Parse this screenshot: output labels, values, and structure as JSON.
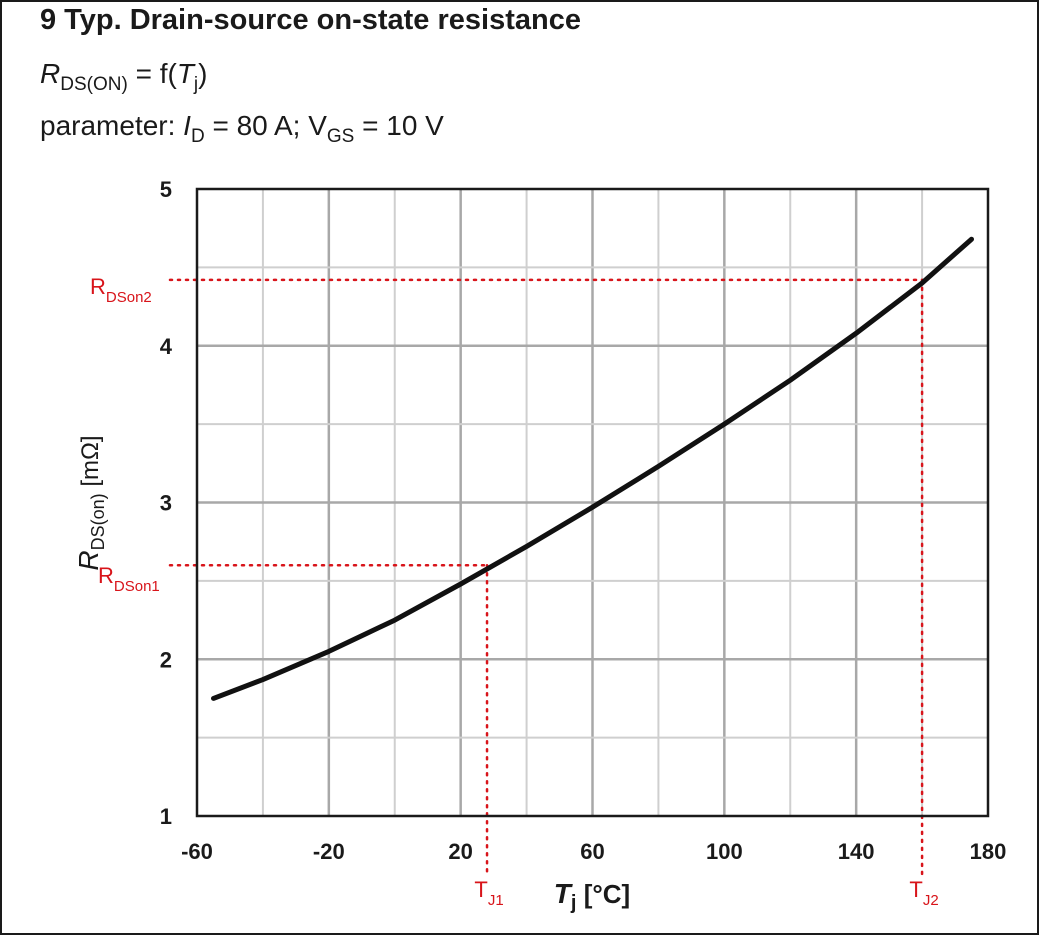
{
  "header": {
    "title": "9 Typ. Drain-source on-state resistance",
    "formula_R": "R",
    "formula_R_sub": "DS(ON)",
    "formula_eq": " = f(",
    "formula_T": "T",
    "formula_T_sub": "j",
    "formula_close": ")",
    "param_prefix": "parameter: ",
    "param_I": "I",
    "param_I_sub": "D",
    "param_I_value": " = 80 A; V",
    "param_V_sub": "GS",
    "param_V_value": " = 10 V"
  },
  "chart_data": {
    "type": "line",
    "title": "9 Typ. Drain-source on-state resistance",
    "xlabel": "T j [°C]",
    "ylabel": "R DS(on) [mΩ]",
    "xlabel_main": "T",
    "xlabel_sub": "j",
    "xlabel_unit": " [°C]",
    "ylabel_main": "R",
    "ylabel_sub": "DS(on)",
    "ylabel_unit": " [mΩ]",
    "xlim": [
      -60,
      180
    ],
    "ylim": [
      1,
      5
    ],
    "x_ticks": [
      -60,
      -20,
      20,
      60,
      100,
      140,
      180
    ],
    "x_tick_labels": [
      "-60",
      "-20",
      "20",
      "60",
      "100",
      "140",
      "180"
    ],
    "y_ticks": [
      1,
      2,
      3,
      4,
      5
    ],
    "y_tick_labels": [
      "1",
      "2",
      "3",
      "4",
      "5"
    ],
    "grid": true,
    "series": [
      {
        "x": [
          -55,
          -40,
          -20,
          0,
          20,
          40,
          60,
          80,
          100,
          120,
          140,
          160,
          175
        ],
        "y": [
          1.75,
          1.87,
          2.05,
          2.25,
          2.48,
          2.72,
          2.97,
          3.23,
          3.5,
          3.78,
          4.08,
          4.4,
          4.68
        ]
      }
    ],
    "annotations": {
      "color": "#d8141a",
      "points": [
        {
          "x": 28,
          "y": 2.6,
          "x_label": "T",
          "x_label_sub": "J1",
          "y_label": "R",
          "y_label_sub": "DSon1"
        },
        {
          "x": 160,
          "y": 4.42,
          "x_label": "T",
          "x_label_sub": "J2",
          "y_label": "R",
          "y_label_sub": "DSon2"
        }
      ]
    }
  }
}
